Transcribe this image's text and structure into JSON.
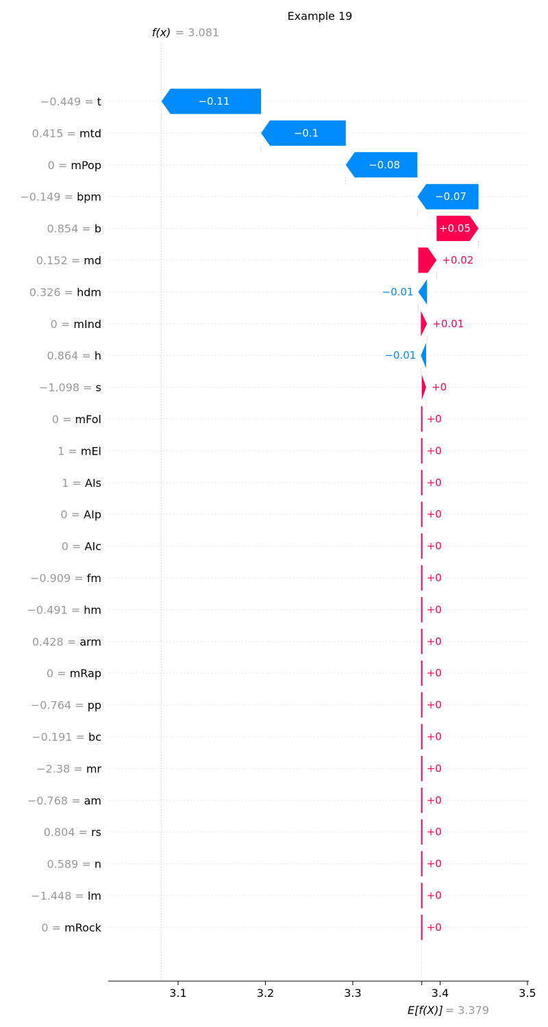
{
  "chart_data": {
    "type": "waterfall",
    "title": "Example 19",
    "fx": {
      "label": "f(x)",
      "value": "3.081",
      "number": 3.081
    },
    "efx": {
      "label": "E[f(X)]",
      "value": "3.379",
      "number": 3.379
    },
    "xlim": [
      3.022,
      3.5
    ],
    "xticks": [
      "3.1",
      "3.2",
      "3.3",
      "3.4",
      "3.5"
    ],
    "colors": {
      "positive": "#ff0051",
      "negative": "#008bfb",
      "feature_value": "#999999",
      "feature_name": "#000000",
      "grid": "#cccccc"
    },
    "features": [
      {
        "value": "−0.449",
        "name": "t",
        "start": 3.195,
        "end": 3.081,
        "label": "−0.11"
      },
      {
        "value": "0.415",
        "name": "mtd",
        "start": 3.292,
        "end": 3.195,
        "label": "−0.1"
      },
      {
        "value": "0",
        "name": "mPop",
        "start": 3.374,
        "end": 3.292,
        "label": "−0.08"
      },
      {
        "value": "−0.149",
        "name": "bpm",
        "start": 3.444,
        "end": 3.374,
        "label": "−0.07"
      },
      {
        "value": "0.854",
        "name": "b",
        "start": 3.396,
        "end": 3.444,
        "label": "+0.05"
      },
      {
        "value": "0.152",
        "name": "md",
        "start": 3.375,
        "end": 3.396,
        "label": "+0.02"
      },
      {
        "value": "0.326",
        "name": "hdm",
        "start": 3.385,
        "end": 3.375,
        "label": "−0.01"
      },
      {
        "value": "0",
        "name": "mInd",
        "start": 3.378,
        "end": 3.385,
        "label": "+0.01"
      },
      {
        "value": "0.864",
        "name": "h",
        "start": 3.384,
        "end": 3.378,
        "label": "−0.01"
      },
      {
        "value": "−1.098",
        "name": "s",
        "start": 3.379,
        "end": 3.384,
        "label": "+0"
      },
      {
        "value": "0",
        "name": "mFol",
        "start": 3.379,
        "end": 3.379,
        "label": "+0"
      },
      {
        "value": "1",
        "name": "mEl",
        "start": 3.379,
        "end": 3.379,
        "label": "+0"
      },
      {
        "value": "1",
        "name": "AIs",
        "start": 3.379,
        "end": 3.379,
        "label": "+0"
      },
      {
        "value": "0",
        "name": "AIp",
        "start": 3.379,
        "end": 3.379,
        "label": "+0"
      },
      {
        "value": "0",
        "name": "AIc",
        "start": 3.379,
        "end": 3.379,
        "label": "+0"
      },
      {
        "value": "−0.909",
        "name": "fm",
        "start": 3.379,
        "end": 3.379,
        "label": "+0"
      },
      {
        "value": "−0.491",
        "name": "hm",
        "start": 3.379,
        "end": 3.379,
        "label": "+0"
      },
      {
        "value": "0.428",
        "name": "arm",
        "start": 3.379,
        "end": 3.379,
        "label": "+0"
      },
      {
        "value": "0",
        "name": "mRap",
        "start": 3.379,
        "end": 3.379,
        "label": "+0"
      },
      {
        "value": "−0.764",
        "name": "pp",
        "start": 3.379,
        "end": 3.379,
        "label": "+0"
      },
      {
        "value": "−0.191",
        "name": "bc",
        "start": 3.379,
        "end": 3.379,
        "label": "+0"
      },
      {
        "value": "−2.38",
        "name": "mr",
        "start": 3.379,
        "end": 3.379,
        "label": "+0"
      },
      {
        "value": "−0.768",
        "name": "am",
        "start": 3.379,
        "end": 3.379,
        "label": "+0"
      },
      {
        "value": "0.804",
        "name": "rs",
        "start": 3.379,
        "end": 3.379,
        "label": "+0"
      },
      {
        "value": "0.589",
        "name": "n",
        "start": 3.379,
        "end": 3.379,
        "label": "+0"
      },
      {
        "value": "−1.448",
        "name": "lm",
        "start": 3.379,
        "end": 3.379,
        "label": "+0"
      },
      {
        "value": "0",
        "name": "mRock",
        "start": 3.379,
        "end": 3.379,
        "label": "+0"
      }
    ]
  }
}
